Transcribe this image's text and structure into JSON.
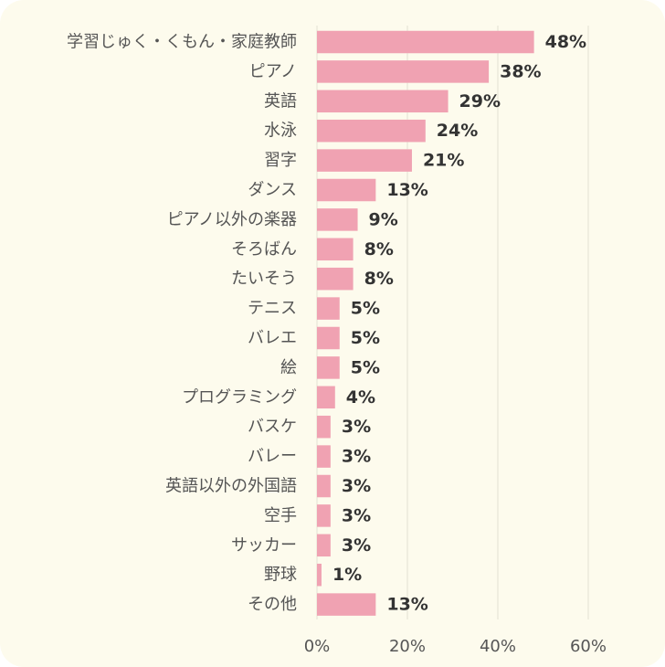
{
  "chart_data": {
    "type": "bar",
    "orientation": "horizontal",
    "categories": [
      "学習じゅく・くもん・家庭教師",
      "ピアノ",
      "英語",
      "水泳",
      "習字",
      "ダンス",
      "ピアノ以外の楽器",
      "そろばん",
      "たいそう",
      "テニス",
      "バレエ",
      "絵",
      "プログラミング",
      "バスケ",
      "バレー",
      "英語以外の外国語",
      "空手",
      "サッカー",
      "野球",
      "その他"
    ],
    "values": [
      48,
      38,
      29,
      24,
      21,
      13,
      9,
      8,
      8,
      5,
      5,
      5,
      4,
      3,
      3,
      3,
      3,
      3,
      1,
      13
    ],
    "value_labels": [
      "48%",
      "38%",
      "29%",
      "24%",
      "21%",
      "13%",
      "9%",
      "8%",
      "8%",
      "5%",
      "5%",
      "5%",
      "4%",
      "3%",
      "3%",
      "3%",
      "3%",
      "3%",
      "1%",
      "13%"
    ],
    "xlim": [
      0,
      60
    ],
    "xticks": [
      0,
      20,
      40,
      60
    ],
    "xtick_labels": [
      "0%",
      "20%",
      "40%",
      "60%"
    ],
    "grid": true,
    "legend": "none",
    "colors": {
      "bar": "#f0a2b2",
      "background": "#fdfbed",
      "grid": "#e4e2d4"
    }
  }
}
